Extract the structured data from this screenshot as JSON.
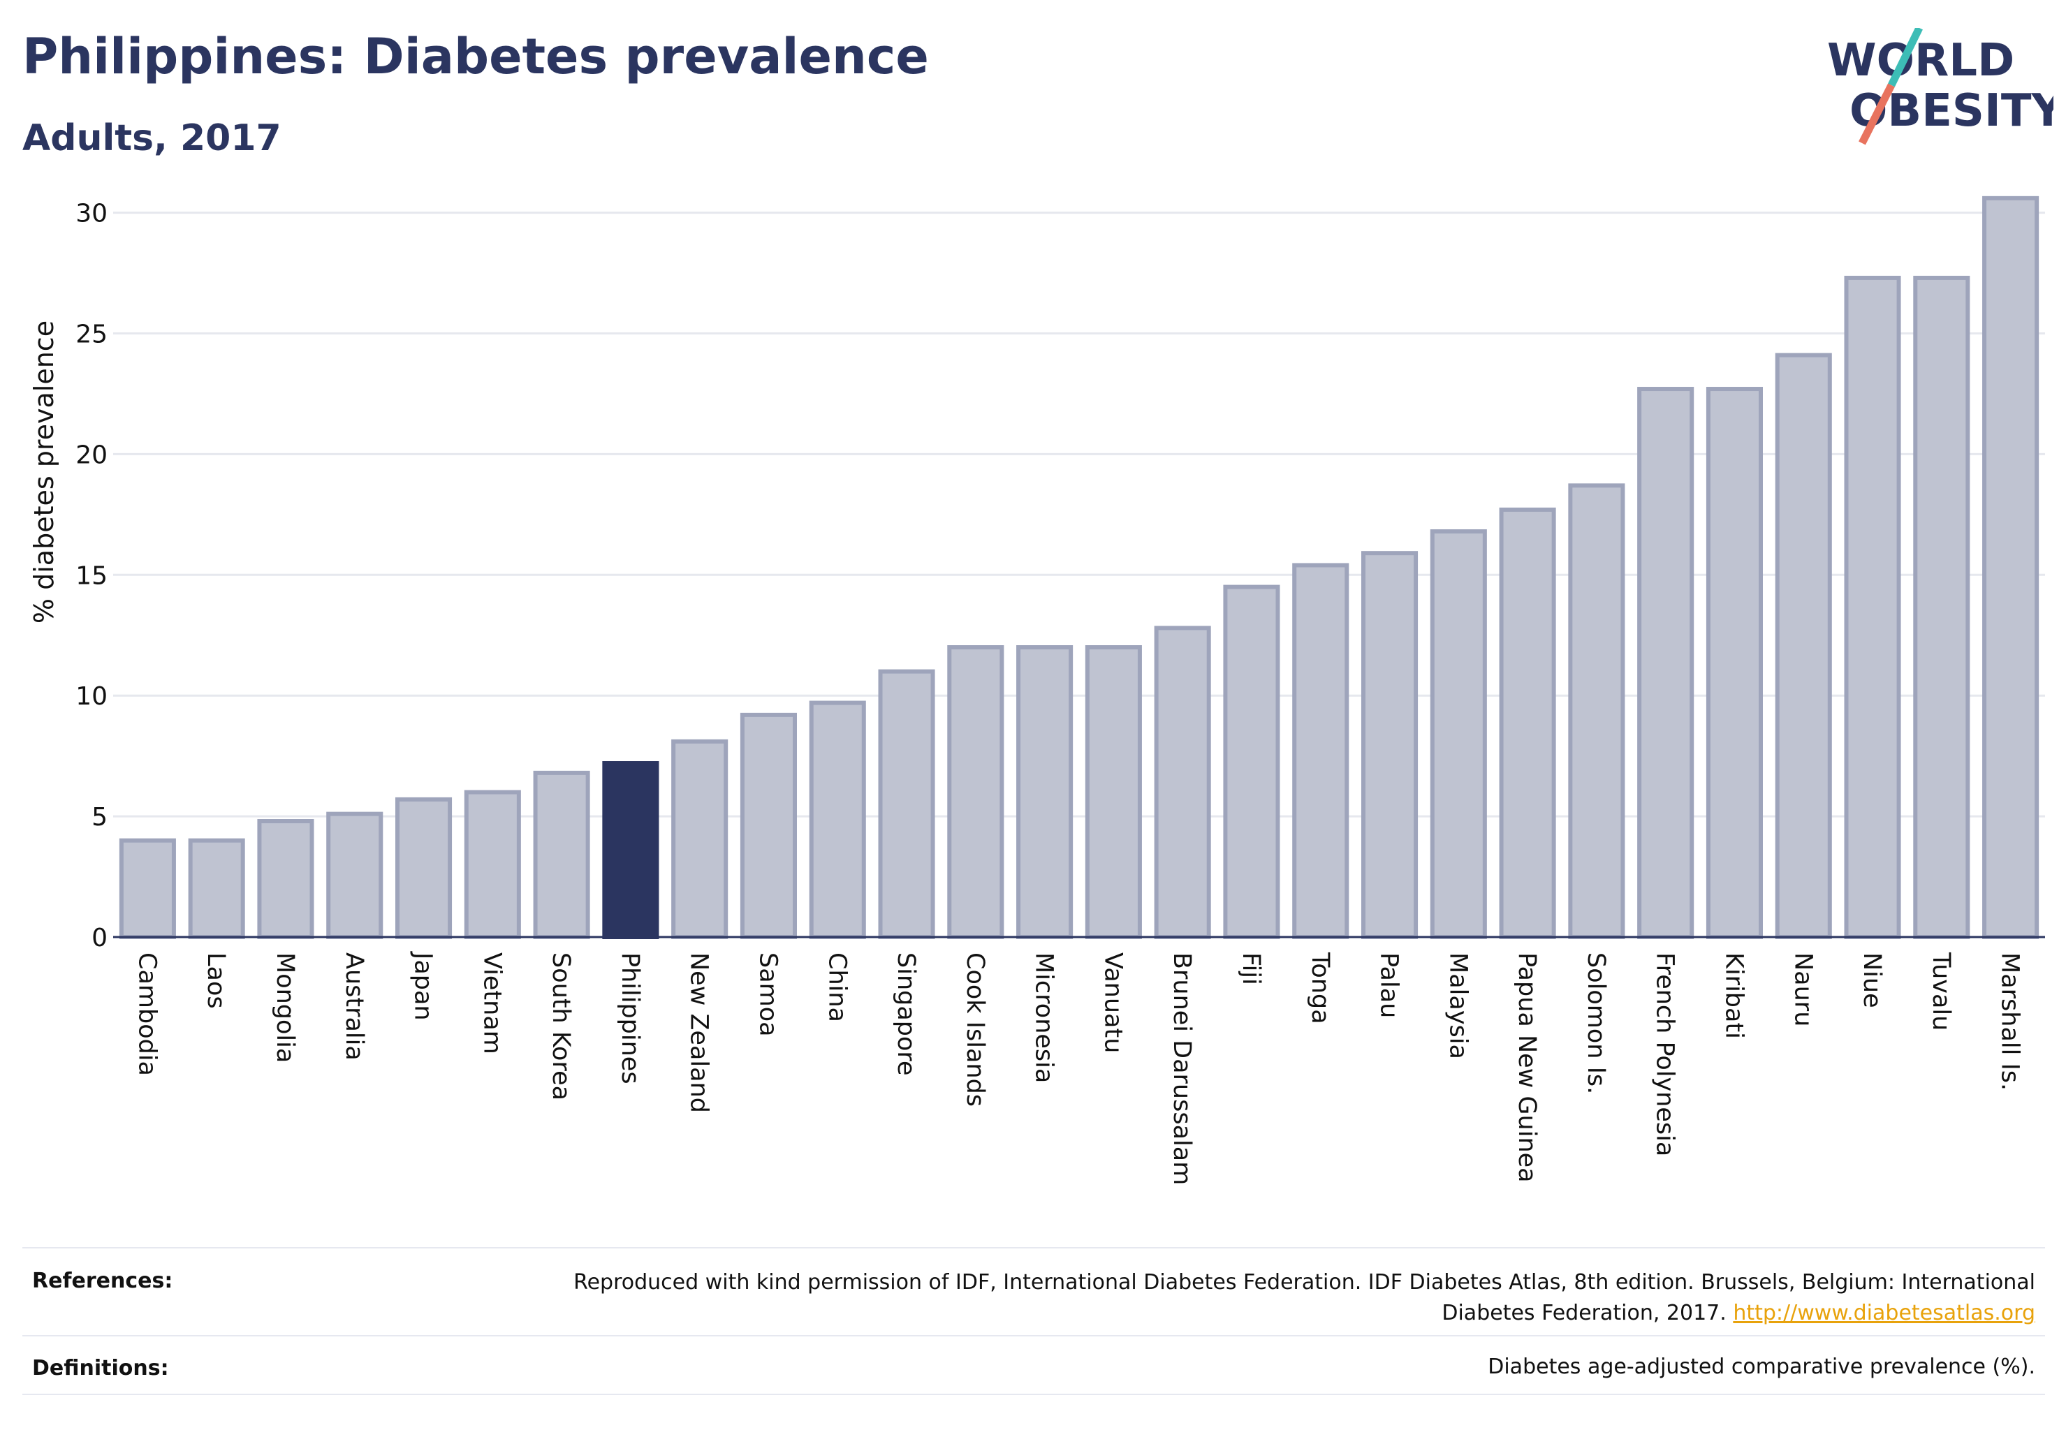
{
  "header": {
    "title": "Philippines: Diabetes prevalence",
    "subtitle": "Adults, 2017"
  },
  "logo": {
    "line1": "WORLD",
    "line2": "OBESITY",
    "colors": {
      "text": "#2b3560",
      "slash_top": "#3dbdb6",
      "slash_bottom": "#e8735e"
    }
  },
  "chart_data": {
    "type": "bar",
    "title": "",
    "xlabel": "",
    "ylabel": "% diabetes prevalence",
    "ylim": [
      0,
      31
    ],
    "yticks": [
      0,
      5,
      10,
      15,
      20,
      25,
      30
    ],
    "grid": true,
    "highlight": "Philippines",
    "colors": {
      "bar": "#bfc3d1",
      "bar_border": "#9ea4bb",
      "highlight": "#2b3560"
    },
    "categories": [
      "Cambodia",
      "Laos",
      "Mongolia",
      "Australia",
      "Japan",
      "Vietnam",
      "South Korea",
      "Philippines",
      "New Zealand",
      "Samoa",
      "China",
      "Singapore",
      "Cook Islands",
      "Micronesia",
      "Vanuatu",
      "Brunei Darussalam",
      "Fiji",
      "Tonga",
      "Palau",
      "Malaysia",
      "Papua New Guinea",
      "Solomon Is.",
      "French Polynesia",
      "Kiribati",
      "Nauru",
      "Niue",
      "Tuvalu",
      "Marshall Is."
    ],
    "values": [
      4.0,
      4.0,
      4.8,
      5.1,
      5.7,
      6.0,
      6.8,
      7.2,
      8.1,
      9.2,
      9.7,
      11.0,
      12.0,
      12.0,
      12.0,
      12.8,
      14.5,
      15.4,
      15.9,
      16.8,
      17.7,
      18.7,
      22.7,
      22.7,
      24.1,
      27.3,
      27.3,
      30.6
    ]
  },
  "footer": {
    "references_label": "References:",
    "references_text": "Reproduced with kind permission of IDF, International Diabetes Federation. IDF Diabetes Atlas, 8th edition. Brussels, Belgium: International Diabetes Federation, 2017.",
    "references_link": "http://www.diabetesatlas.org",
    "definitions_label": "Definitions:",
    "definitions_text": "Diabetes age-adjusted comparative prevalence (%)."
  }
}
